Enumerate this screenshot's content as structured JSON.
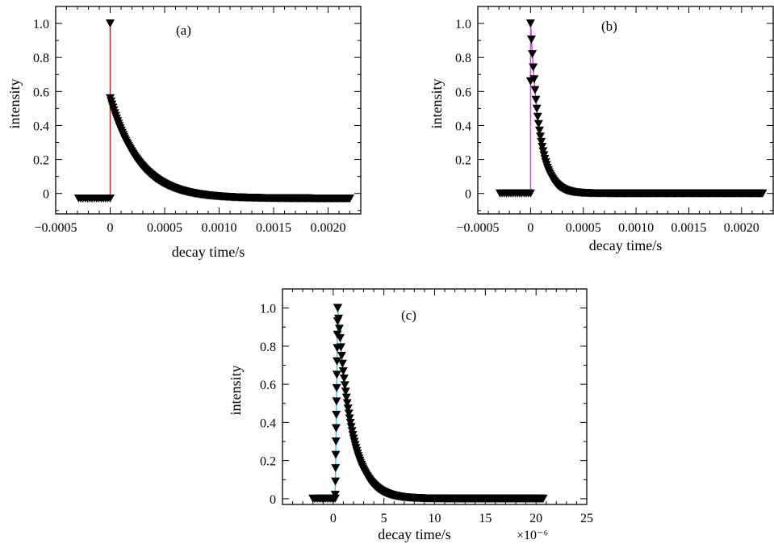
{
  "chart_data": [
    {
      "type": "scatter",
      "panel": "(a)",
      "xlabel": "decay time/s",
      "ylabel": "intensity",
      "xlim": [
        -0.0005,
        0.0023
      ],
      "ylim": [
        -0.12,
        1.1
      ],
      "x_ticks": [
        -0.0005,
        0,
        0.0005,
        0.001,
        0.0015,
        0.002
      ],
      "x_tick_labels": [
        "−0.0005",
        "0",
        "0.0005",
        "0.0010",
        "0.0015",
        "0.0020"
      ],
      "y_ticks": [
        0,
        0.2,
        0.4,
        0.6,
        0.8,
        1.0
      ],
      "y_tick_labels": [
        "0",
        "0.2",
        "0.4",
        "0.6",
        "0.8",
        "1.0"
      ],
      "line_color": "#b03030",
      "marker": "triangle-down",
      "marker_color": "#000000",
      "series": [
        {
          "baseline": {
            "x_start": -0.00029,
            "x_end": 0,
            "y": -0.03
          },
          "spike": {
            "x": 0,
            "y": 1.0
          },
          "decay": {
            "x_start": 0,
            "x_end": 0.0022,
            "y0": 0.56,
            "tau": 0.00026,
            "offset": -0.03
          }
        }
      ]
    },
    {
      "type": "scatter",
      "panel": "(b)",
      "xlabel": "decay time/s",
      "ylabel": "intensity",
      "xlim": [
        -0.0005,
        0.0023
      ],
      "ylim": [
        -0.12,
        1.1
      ],
      "x_ticks": [
        -0.0005,
        0,
        0.0005,
        0.001,
        0.0015,
        0.002
      ],
      "x_tick_labels": [
        "−0.0005",
        "0",
        "0.0005",
        "0.0010",
        "0.0015",
        "0.0020"
      ],
      "y_ticks": [
        0,
        0.2,
        0.4,
        0.6,
        0.8,
        1.0
      ],
      "y_tick_labels": [
        "0",
        "0.2",
        "0.4",
        "0.6",
        "0.8",
        "1.0"
      ],
      "line_color": "#e040e0",
      "marker": "triangle-down",
      "marker_color": "#000000",
      "series": [
        {
          "baseline": {
            "x_start": -0.00029,
            "x_end": 0,
            "y": 0
          },
          "spike": {
            "x": 0,
            "y": 0.66
          },
          "decay": {
            "x_start": 0,
            "x_end": 0.0022,
            "y0": 1.0,
            "tau": 8.5e-05,
            "offset": 0
          }
        }
      ]
    },
    {
      "type": "scatter",
      "panel": "(c)",
      "xlabel": "decay time/s",
      "ylabel": "intensity",
      "x_multiplier": "×10⁻⁶",
      "xlim": [
        -5,
        25
      ],
      "ylim": [
        -0.03,
        1.1
      ],
      "x_ticks": [
        0,
        5,
        10,
        15,
        20,
        25
      ],
      "x_tick_labels": [
        "0",
        "5",
        "10",
        "15",
        "20",
        "25"
      ],
      "y_ticks": [
        0,
        0.2,
        0.4,
        0.6,
        0.8,
        1.0
      ],
      "y_tick_labels": [
        "0",
        "0.2",
        "0.4",
        "0.6",
        "0.8",
        "1.0"
      ],
      "line_color": "#30d0e0",
      "marker": "triangle-down",
      "marker_color": "#000000",
      "series": [
        {
          "baseline": {
            "x_start": -2.0,
            "x_end": 0.2,
            "y": 0
          },
          "rise": {
            "x_start": 0.2,
            "x_end": 0.45,
            "y_start": 0.02,
            "y_end": 1.0
          },
          "decay": {
            "x_start": 0.45,
            "x_end": 20.7,
            "y0": 1.0,
            "tau": 1.35,
            "offset": 0
          }
        }
      ]
    }
  ]
}
